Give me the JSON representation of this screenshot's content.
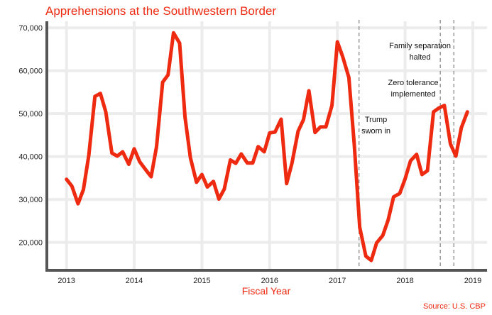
{
  "chart_data": {
    "type": "line",
    "title": "Apprehensions at the Southwestern Border",
    "xlabel": "Fiscal Year",
    "ylabel": "",
    "source": "Source: U.S. CBP",
    "xlim": [
      2012.71,
      2019.21
    ],
    "ylim": [
      13500,
      71500
    ],
    "grid": true,
    "legend": "none",
    "colors": {
      "title": "#ee2a10",
      "line": "#ee2a10",
      "axis": "#555555",
      "grid": "#ececec",
      "vline": "#8a8a8a"
    },
    "x_ticks": [
      "2013",
      "2014",
      "2015",
      "2016",
      "2017",
      "2018",
      "2019"
    ],
    "x_tick_values": [
      2013,
      2014,
      2015,
      2016,
      2017,
      2018,
      2019
    ],
    "y_ticks": [
      "20,000",
      "30,000",
      "40,000",
      "50,000",
      "60,000",
      "70,000"
    ],
    "y_tick_values": [
      20000,
      30000,
      40000,
      50000,
      60000,
      70000
    ],
    "series": [
      {
        "x": [
          2013.0,
          2013.08,
          2013.17,
          2013.25,
          2013.33,
          2013.42,
          2013.5,
          2013.58,
          2013.67,
          2013.75,
          2013.83,
          2013.92,
          2014.0,
          2014.08,
          2014.17,
          2014.25,
          2014.33,
          2014.42,
          2014.5,
          2014.58,
          2014.67,
          2014.75,
          2014.83,
          2014.92,
          2015.0,
          2015.08,
          2015.17,
          2015.25,
          2015.33,
          2015.42,
          2015.5,
          2015.58,
          2015.67,
          2015.75,
          2015.83,
          2015.92,
          2016.0,
          2016.08,
          2016.17,
          2016.25,
          2016.33,
          2016.42,
          2016.5,
          2016.58,
          2016.67,
          2016.75,
          2016.83,
          2016.92,
          2017.0,
          2017.08,
          2017.17,
          2017.25,
          2017.33,
          2017.42,
          2017.5,
          2017.58,
          2017.67,
          2017.75,
          2017.83,
          2017.92,
          2018.0,
          2018.08,
          2018.17,
          2018.25,
          2018.33,
          2018.42,
          2018.5,
          2018.58,
          2018.67,
          2018.75,
          2018.83,
          2018.92
        ],
        "values": [
          34700,
          33100,
          29000,
          32300,
          40300,
          54000,
          54700,
          50400,
          40800,
          40100,
          41100,
          38200,
          41800,
          38800,
          36900,
          35300,
          42300,
          57300,
          59000,
          68800,
          66400,
          49200,
          39700,
          34000,
          35800,
          32900,
          34200,
          30100,
          32400,
          39200,
          38400,
          40600,
          38500,
          38500,
          42300,
          41100,
          45500,
          45700,
          48700,
          33700,
          38500,
          45900,
          48600,
          55300,
          45600,
          46900,
          46900,
          51900,
          66700,
          63200,
          58400,
          42800,
          23500,
          16800,
          15800,
          19900,
          21600,
          25200,
          30600,
          31400,
          34800,
          39000,
          40500,
          35800,
          36700,
          50400,
          51300,
          51900,
          42900,
          40100,
          46700,
          50400
        ]
      }
    ],
    "vlines": [
      2017.32,
      2018.52,
      2018.72
    ],
    "annotations": [
      {
        "lines": [
          "Trump",
          "sworn in"
        ],
        "x": 2017.57,
        "y": 48700
      },
      {
        "lines": [
          "Zero tolerance",
          "implemented"
        ],
        "x": 2018.12,
        "y": 57300
      },
      {
        "lines": [
          "Family separation",
          "halted"
        ],
        "x": 2018.22,
        "y": 65900
      }
    ]
  }
}
